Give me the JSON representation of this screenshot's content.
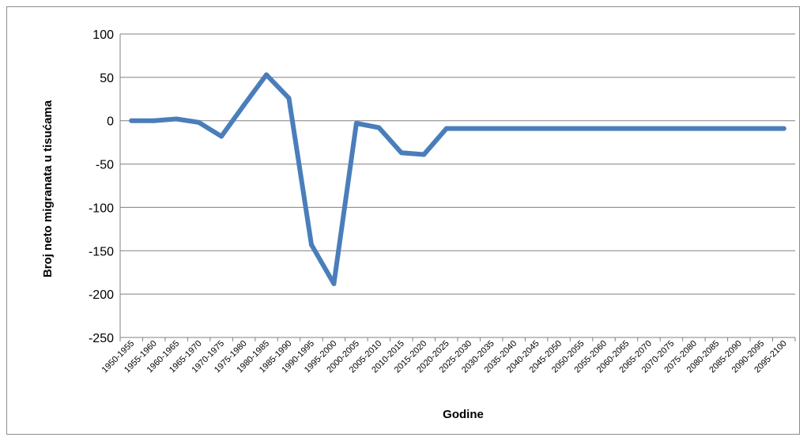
{
  "chart_data": {
    "type": "line",
    "title": "",
    "xlabel": "Godine",
    "ylabel": "Broj neto migranata u tisućama",
    "ylim": [
      -250,
      100
    ],
    "yticks": [
      100,
      50,
      0,
      -50,
      -100,
      -150,
      -200,
      -250
    ],
    "ytick_labels": [
      "100",
      "50",
      "0",
      "-50",
      "-100",
      "-150",
      "-200",
      "-250"
    ],
    "grid": "horizontal",
    "legend": "none",
    "categories": [
      "1950-1955",
      "1955-1960",
      "1960-1965",
      "1965-1970",
      "1970-1975",
      "1975-1980",
      "1980-1985",
      "1985-1990",
      "1990-1995",
      "1995-2000",
      "2000-2005",
      "2005-2010",
      "2010-2015",
      "2015-2020",
      "2020-2025",
      "2025-2030",
      "2030-2035",
      "2035-2040",
      "2040-2045",
      "2045-2050",
      "2050-2055",
      "2055-2060",
      "2060-2065",
      "2065-2070",
      "2070-2075",
      "2075-2080",
      "2080-2085",
      "2085-2090",
      "2090-2095",
      "2095-2100"
    ],
    "series": [
      {
        "values": [
          0,
          0,
          2,
          -2,
          -18,
          18,
          53,
          26,
          -143,
          -188,
          -3,
          -8,
          -37,
          -39,
          -9,
          -9,
          -9,
          -9,
          -9,
          -9,
          -9,
          -9,
          -9,
          -9,
          -9,
          -9,
          -9,
          -9,
          -9,
          -9
        ]
      }
    ],
    "colors": {
      "line": "#4a7ebb",
      "grid": "#808080",
      "axis": "#808080"
    }
  }
}
